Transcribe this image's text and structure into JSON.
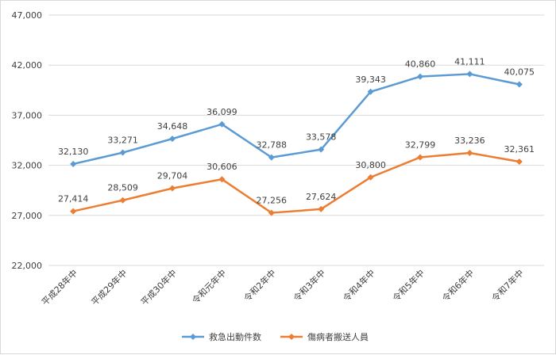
{
  "chart_data": {
    "type": "line",
    "title": "",
    "xlabel": "",
    "ylabel": "",
    "categories": [
      "平成28年中",
      "平成29年中",
      "平成30年中",
      "令和元年中",
      "令和2年中",
      "令和3年中",
      "令和4年中",
      "令和5年中",
      "令和6年中",
      "令和7年中"
    ],
    "y_ticks": [
      "22,000",
      "27,000",
      "32,000",
      "37,000",
      "42,000",
      "47,000"
    ],
    "ylim": [
      22000,
      47000
    ],
    "grid": true,
    "legend_position": "bottom",
    "series": [
      {
        "name": "救急出動件数",
        "color": "#5b9bd5",
        "values": [
          32130,
          33271,
          34648,
          36099,
          32788,
          33578,
          39343,
          40860,
          41111,
          40075
        ],
        "labels": [
          "32,130",
          "33,271",
          "34,648",
          "36,099",
          "32,788",
          "33,578",
          "39,343",
          "40,860",
          "41,111",
          "40,075"
        ]
      },
      {
        "name": "傷病者搬送人員",
        "color": "#ed7d31",
        "values": [
          27414,
          28509,
          29704,
          30606,
          27256,
          27624,
          30800,
          32799,
          33236,
          32361
        ],
        "labels": [
          "27,414",
          "28,509",
          "29,704",
          "30,606",
          "27,256",
          "27,624",
          "30,800",
          "32,799",
          "33,236",
          "32,361"
        ]
      }
    ]
  }
}
